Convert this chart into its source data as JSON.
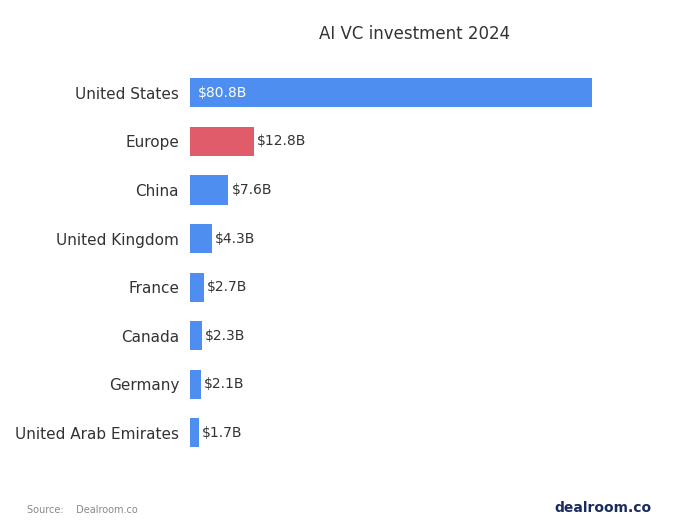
{
  "title": "AI VC investment 2024",
  "categories": [
    "United States",
    "Europe",
    "China",
    "United Kingdom",
    "France",
    "Canada",
    "Germany",
    "United Arab Emirates"
  ],
  "values": [
    80.8,
    12.8,
    7.6,
    4.3,
    2.7,
    2.3,
    2.1,
    1.7
  ],
  "labels": [
    "$80.8B",
    "$12.8B",
    "$7.6B",
    "$4.3B",
    "$2.7B",
    "$2.3B",
    "$2.1B",
    "$1.7B"
  ],
  "bar_colors": [
    "#4D8EF0",
    "#E05C6A",
    "#4D8EF0",
    "#4D8EF0",
    "#4D8EF0",
    "#4D8EF0",
    "#4D8EF0",
    "#4D8EF0"
  ],
  "background_color": "#FFFFFF",
  "title_color": "#333333",
  "label_color": "#333333",
  "category_color": "#333333",
  "source_text": "Source:    Dealroom.co",
  "brand_text": "dealroom.co",
  "brand_color": "#1A2B5F",
  "source_color": "#888888",
  "title_fontsize": 12,
  "label_fontsize": 10,
  "category_fontsize": 11,
  "bar_height": 0.6,
  "xlim": [
    0,
    90
  ]
}
